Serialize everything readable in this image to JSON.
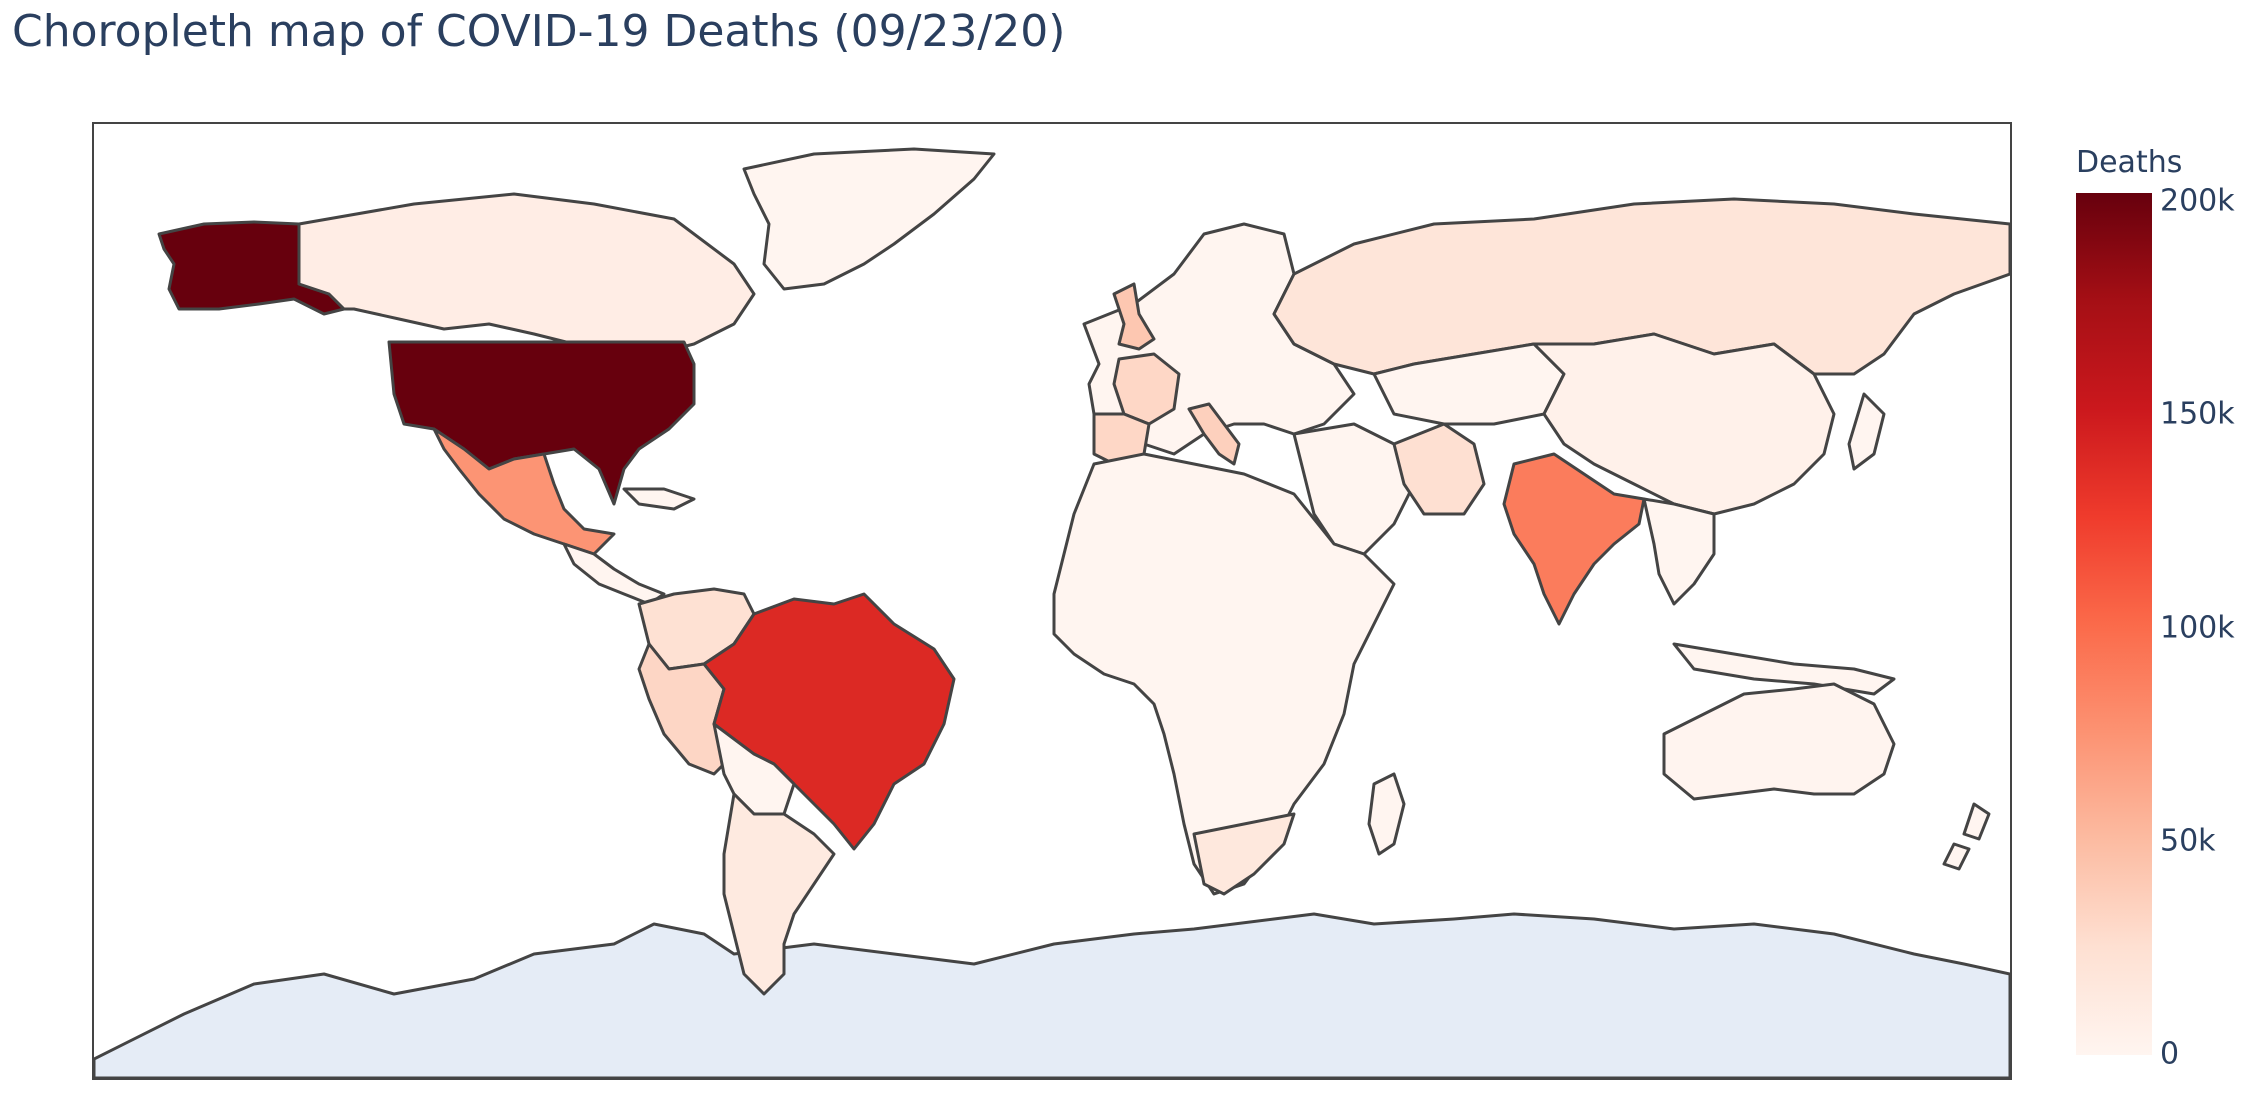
{
  "title": "Choropleth map of COVID-19 Deaths (09/23/20)",
  "colorbar": {
    "title": "Deaths",
    "ticks": [
      "200k",
      "150k",
      "100k",
      "50k",
      "0"
    ],
    "range": [
      0,
      200000
    ],
    "colorscale": "Reds",
    "nodata_color": "#e5ecf6"
  },
  "map_data": {
    "type": "choropleth",
    "projection": "equirectangular",
    "metric": "Deaths",
    "regions": [
      {
        "name": "United States",
        "value": 200000
      },
      {
        "name": "Brazil",
        "value": 138000
      },
      {
        "name": "India",
        "value": 89000
      },
      {
        "name": "United Kingdom",
        "value": 41900
      },
      {
        "name": "Italy",
        "value": 35700
      },
      {
        "name": "Mexico",
        "value": 74000
      },
      {
        "name": "Spain",
        "value": 31000
      },
      {
        "name": "France",
        "value": 31000
      },
      {
        "name": "Peru",
        "value": 31600
      },
      {
        "name": "Colombia",
        "value": 24000
      },
      {
        "name": "South Africa",
        "value": 16000
      },
      {
        "name": "Iran",
        "value": 24600
      },
      {
        "name": "Argentina",
        "value": 13000
      },
      {
        "name": "Russia",
        "value": 19000
      },
      {
        "name": "Canada",
        "value": 9250
      },
      {
        "name": "China",
        "value": 4700
      },
      {
        "name": "Australia",
        "value": 850
      },
      {
        "name": "Greenland",
        "value": 0
      }
    ]
  }
}
